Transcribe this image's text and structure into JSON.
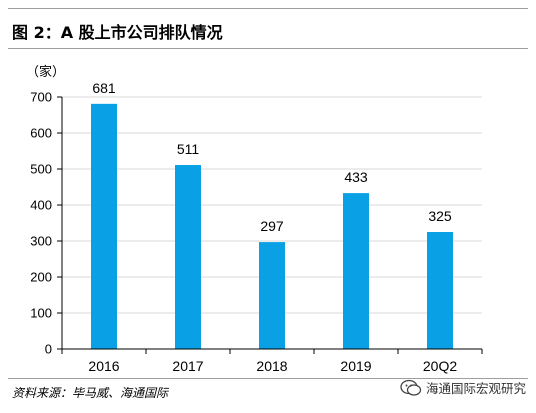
{
  "figure": {
    "title": "图 2：A 股上市公司排队情况",
    "source": "资料来源：毕马威、海通国际",
    "watermark": "海通国际宏观研究",
    "watermark_icon": "wechat-icon"
  },
  "chart_data": {
    "type": "bar",
    "title": "图 2：A 股上市公司排队情况",
    "unit_label": "（家）",
    "xlabel": "",
    "ylabel": "",
    "categories": [
      "2016",
      "2017",
      "2018",
      "2019",
      "20Q2"
    ],
    "values": [
      681,
      511,
      297,
      433,
      325
    ],
    "data_labels": [
      "681",
      "511",
      "297",
      "433",
      "325"
    ],
    "ylim": [
      0,
      700
    ],
    "yticks": [
      0,
      100,
      200,
      300,
      400,
      500,
      600,
      700
    ],
    "ytick_labels": [
      "0",
      "100",
      "200",
      "300",
      "400",
      "500",
      "600",
      "700"
    ],
    "grid": true,
    "legend": "none",
    "colors": {
      "bar": "#0aa0e6",
      "grid": "#d9d9d9",
      "axis": "#000000"
    }
  }
}
